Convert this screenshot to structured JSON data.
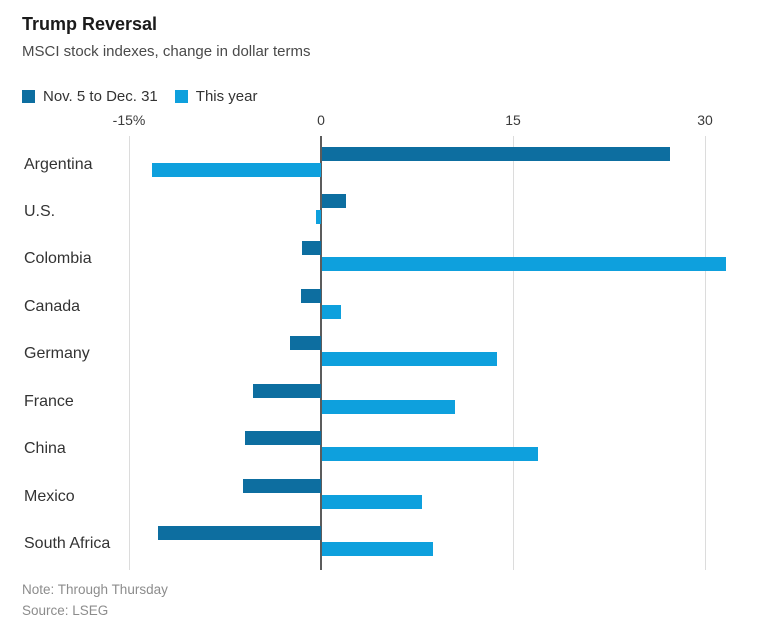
{
  "title": "Trump Reversal",
  "subtitle": "MSCI stock indexes, change in dollar terms",
  "legend": {
    "items": [
      {
        "label": "Nov. 5 to Dec. 31",
        "color": "#0d6ea0"
      },
      {
        "label": "This year",
        "color": "#0ea0dd"
      }
    ]
  },
  "footer": {
    "note": "Note: Through Thursday",
    "source": "Source: LSEG"
  },
  "colors": {
    "series_dark": "#0d6ea0",
    "series_light": "#0ea0dd",
    "gridline": "#dcdcdc",
    "zero_axis": "#5c5c5c",
    "text": "#333333",
    "muted_text": "#8c8c8c"
  },
  "chart_data": {
    "type": "bar",
    "orientation": "horizontal",
    "title": "Trump Reversal",
    "subtitle": "MSCI stock indexes, change in dollar terms",
    "unit": "percent change in dollar terms",
    "categories": [
      "Argentina",
      "U.S.",
      "Colombia",
      "Canada",
      "Germany",
      "France",
      "China",
      "Mexico",
      "South Africa"
    ],
    "series": [
      {
        "name": "Nov. 5 to Dec. 31",
        "color": "#0d6ea0",
        "values": [
          27.2,
          1.9,
          -1.5,
          -1.6,
          -2.4,
          -5.3,
          -5.9,
          -6.1,
          -12.7
        ]
      },
      {
        "name": "This year",
        "color": "#0ea0dd",
        "values": [
          -13.2,
          -0.4,
          31.6,
          1.5,
          13.7,
          10.4,
          16.9,
          7.8,
          8.7
        ]
      }
    ],
    "xlabel_ticks": [
      {
        "value": -15,
        "label": "-15%"
      },
      {
        "value": 0,
        "label": "0"
      },
      {
        "value": 15,
        "label": "15"
      },
      {
        "value": 30,
        "label": "30"
      }
    ],
    "xlim": [
      -15.5,
      35
    ],
    "grid": true,
    "legend_position": "top"
  }
}
